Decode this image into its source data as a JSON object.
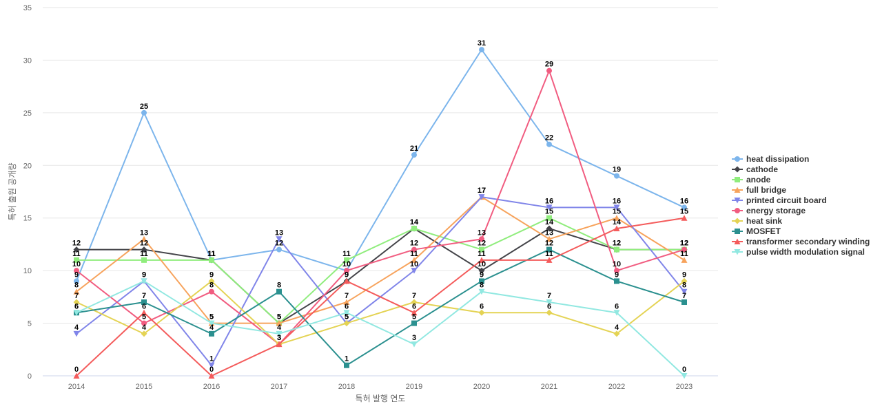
{
  "chart_data": {
    "type": "line",
    "xlabel": "특허 발행 연도",
    "ylabel": "특허 출원 공개량",
    "ylim": [
      0,
      35
    ],
    "yticks": [
      0,
      5,
      10,
      15,
      20,
      25,
      30,
      35
    ],
    "grid": true,
    "legend_position": "right",
    "data_labels": true,
    "x": [
      "2014",
      "2015",
      "2016",
      "2017",
      "2018",
      "2019",
      "2020",
      "2021",
      "2022",
      "2023"
    ],
    "series": [
      {
        "name": "heat dissipation",
        "color": "#7cb5ec",
        "marker": "circle",
        "values": [
          9,
          25,
          11,
          12,
          10,
          21,
          31,
          22,
          19,
          16
        ]
      },
      {
        "name": "cathode",
        "color": "#434348",
        "marker": "diamond",
        "values": [
          12,
          12,
          11,
          5,
          9,
          14,
          10,
          14,
          12,
          12
        ]
      },
      {
        "name": "anode",
        "color": "#90ed7d",
        "marker": "square",
        "values": [
          11,
          11,
          11,
          5,
          11,
          14,
          12,
          15,
          12,
          12
        ]
      },
      {
        "name": "full bridge",
        "color": "#f7a35c",
        "marker": "triangle",
        "values": [
          8,
          13,
          5,
          5,
          7,
          11,
          17,
          13,
          15,
          11
        ]
      },
      {
        "name": "printed circuit board",
        "color": "#8085e9",
        "marker": "triangle-down",
        "values": [
          4,
          9,
          1,
          13,
          5,
          10,
          17,
          16,
          16,
          8
        ]
      },
      {
        "name": "energy storage",
        "color": "#f15c80",
        "marker": "circle",
        "values": [
          10,
          5,
          8,
          3,
          10,
          12,
          13,
          29,
          10,
          12
        ]
      },
      {
        "name": "heat sink",
        "color": "#e4d354",
        "marker": "diamond",
        "values": [
          7,
          4,
          9,
          3,
          5,
          7,
          6,
          6,
          4,
          9
        ]
      },
      {
        "name": "MOSFET",
        "color": "#2b908f",
        "marker": "square",
        "values": [
          6,
          7,
          4,
          8,
          1,
          5,
          9,
          12,
          9,
          7
        ]
      },
      {
        "name": "transformer secondary winding",
        "color": "#f45b5b",
        "marker": "triangle",
        "values": [
          0,
          6,
          0,
          3,
          9,
          6,
          11,
          11,
          14,
          15
        ]
      },
      {
        "name": "pulse width modulation signal",
        "color": "#91e8e1",
        "marker": "triangle-down",
        "values": [
          6,
          9,
          5,
          4,
          6,
          3,
          8,
          7,
          6,
          0
        ]
      }
    ]
  }
}
